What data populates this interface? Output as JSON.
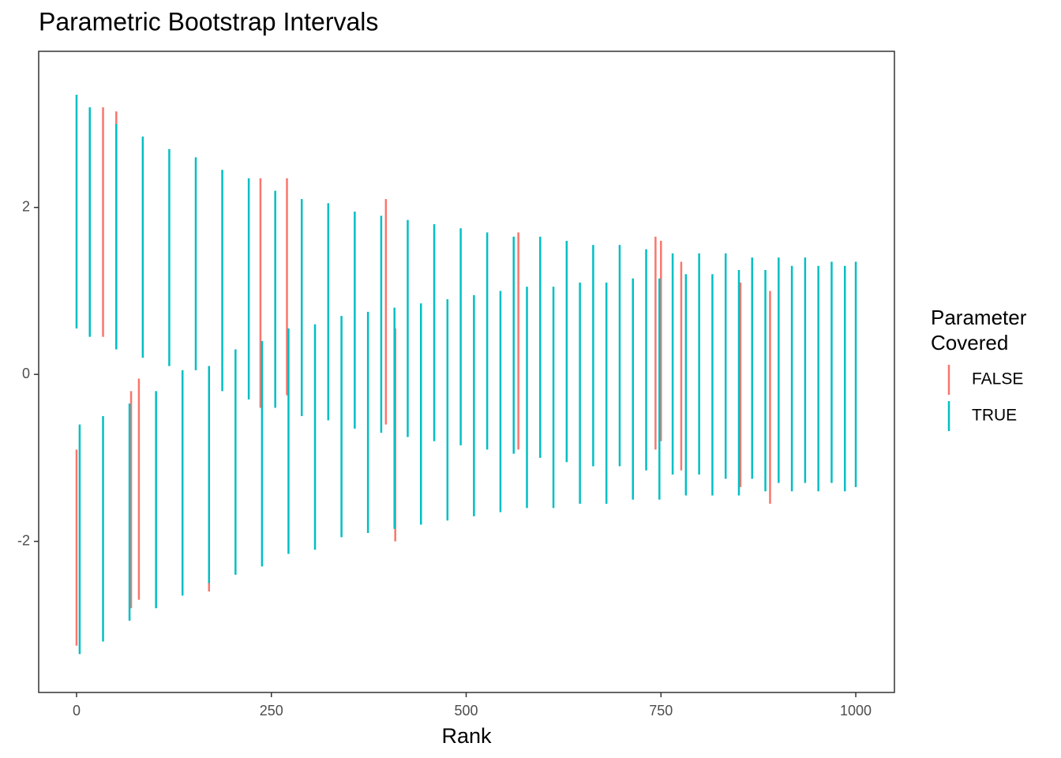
{
  "chart_data": {
    "type": "interval",
    "title": "Parametric Bootstrap Intervals",
    "xlabel": "Rank",
    "legend_title": [
      "Parameter",
      "Covered"
    ],
    "legend": "right",
    "xlim": [
      -48.6,
      1049.6
    ],
    "xticks": [
      0,
      250,
      500,
      750,
      1000
    ],
    "ylim": [
      -3.81,
      3.87
    ],
    "yticks": [
      -2,
      0,
      2
    ],
    "series": [
      {
        "name": "FALSE",
        "color": "#F8766D",
        "x": [
          0,
          34,
          51,
          70,
          80,
          170,
          236,
          270,
          397,
          409,
          567,
          743,
          750,
          776,
          852,
          890
        ],
        "low": [
          -3.25,
          0.45,
          0.3,
          -2.8,
          -2.7,
          -2.6,
          -0.4,
          -0.25,
          -0.6,
          -2.0,
          -0.9,
          -0.9,
          -0.8,
          -1.15,
          -1.35,
          -1.55
        ],
        "high": [
          -0.9,
          3.2,
          3.15,
          -0.2,
          -0.05,
          0.1,
          2.35,
          2.35,
          2.1,
          0.55,
          1.7,
          1.65,
          1.6,
          1.35,
          1.1,
          1.0
        ]
      },
      {
        "name": "TRUE",
        "color": "#00BFC4",
        "x": [
          0,
          4,
          17,
          34,
          51,
          68,
          85,
          102,
          119,
          136,
          153,
          170,
          187,
          204,
          221,
          238,
          255,
          272,
          289,
          306,
          323,
          340,
          357,
          374,
          391,
          408,
          425,
          442,
          459,
          476,
          493,
          510,
          527,
          544,
          561,
          578,
          595,
          612,
          629,
          646,
          663,
          680,
          697,
          714,
          731,
          748,
          765,
          782,
          799,
          816,
          833,
          850,
          867,
          884,
          901,
          918,
          935,
          952,
          969,
          986,
          1000
        ],
        "low": [
          0.55,
          -3.35,
          0.45,
          -3.2,
          0.3,
          -2.95,
          0.2,
          -2.8,
          0.1,
          -2.65,
          0.05,
          -2.5,
          -0.2,
          -2.4,
          -0.3,
          -2.3,
          -0.4,
          -2.15,
          -0.5,
          -2.1,
          -0.55,
          -1.95,
          -0.65,
          -1.9,
          -0.7,
          -1.85,
          -0.75,
          -1.8,
          -0.8,
          -1.75,
          -0.85,
          -1.7,
          -0.9,
          -1.65,
          -0.95,
          -1.6,
          -1.0,
          -1.6,
          -1.05,
          -1.55,
          -1.1,
          -1.55,
          -1.1,
          -1.5,
          -1.15,
          -1.5,
          -1.2,
          -1.45,
          -1.2,
          -1.45,
          -1.25,
          -1.45,
          -1.25,
          -1.4,
          -1.3,
          -1.4,
          -1.3,
          -1.4,
          -1.3,
          -1.4,
          -1.35
        ],
        "high": [
          3.35,
          -0.6,
          3.2,
          -0.5,
          3.0,
          -0.35,
          2.85,
          -0.2,
          2.7,
          0.05,
          2.6,
          0.1,
          2.45,
          0.3,
          2.35,
          0.4,
          2.2,
          0.55,
          2.1,
          0.6,
          2.05,
          0.7,
          1.95,
          0.75,
          1.9,
          0.8,
          1.85,
          0.85,
          1.8,
          0.9,
          1.75,
          0.95,
          1.7,
          1.0,
          1.65,
          1.05,
          1.65,
          1.05,
          1.6,
          1.1,
          1.55,
          1.1,
          1.55,
          1.15,
          1.5,
          1.15,
          1.45,
          1.2,
          1.45,
          1.2,
          1.45,
          1.25,
          1.4,
          1.25,
          1.4,
          1.3,
          1.4,
          1.3,
          1.35,
          1.3,
          1.35
        ]
      }
    ]
  }
}
